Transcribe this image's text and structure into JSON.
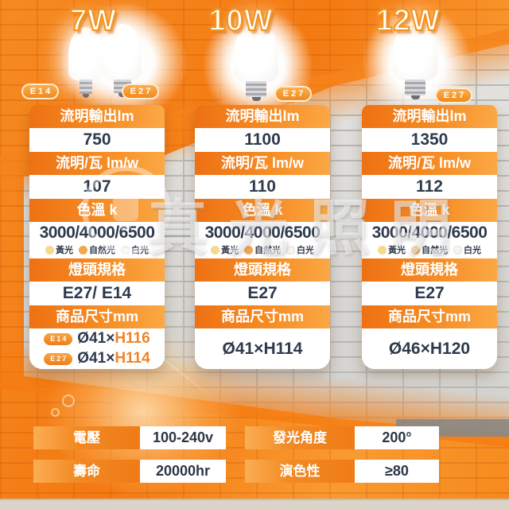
{
  "watermark": {
    "text": "真光照明"
  },
  "headers": {
    "lumen": "流明輸出lm",
    "efficacy": "流明/瓦 lm/w",
    "cct": "色溫 k",
    "base": "燈頭規格",
    "size": "商品尺寸mm"
  },
  "legend": [
    {
      "label": "黃光",
      "color": "#f6d98d"
    },
    {
      "label": "自然光",
      "color": "#f2a64e"
    },
    {
      "label": "白光",
      "color": "#f7f5f0"
    }
  ],
  "products": [
    {
      "wattage": "7W",
      "badges": [
        "E14",
        "E27"
      ],
      "lumen": "750",
      "efficacy": "107",
      "cct": "3000/4000/6500",
      "base": "E27/ E14",
      "sizes": [
        {
          "badge": "E14",
          "diameter": "Ø41×",
          "height": "H116"
        },
        {
          "badge": "E27",
          "diameter": "Ø41×",
          "height": "H114"
        }
      ]
    },
    {
      "wattage": "10W",
      "badges": [
        "E27"
      ],
      "lumen": "1100",
      "efficacy": "110",
      "cct": "3000/4000/6500",
      "base": "E27",
      "size": "Ø41×H114"
    },
    {
      "wattage": "12W",
      "badges": [
        "E27"
      ],
      "lumen": "1350",
      "efficacy": "112",
      "cct": "3000/4000/6500",
      "base": "E27",
      "size": "Ø46×H120"
    }
  ],
  "bottom_specs": [
    {
      "label": "電壓",
      "value": "100-240v"
    },
    {
      "label": "壽命",
      "value": "20000hr"
    },
    {
      "label": "發光角度",
      "value": "200°"
    },
    {
      "label": "演色性",
      "value": "≥80"
    }
  ],
  "colors": {
    "accent_orange": "#f5821f",
    "header_gradient_start": "#ee7113",
    "header_gradient_end": "#fba845",
    "value_text": "#2e3a4c",
    "dimension_highlight": "#f08329"
  }
}
